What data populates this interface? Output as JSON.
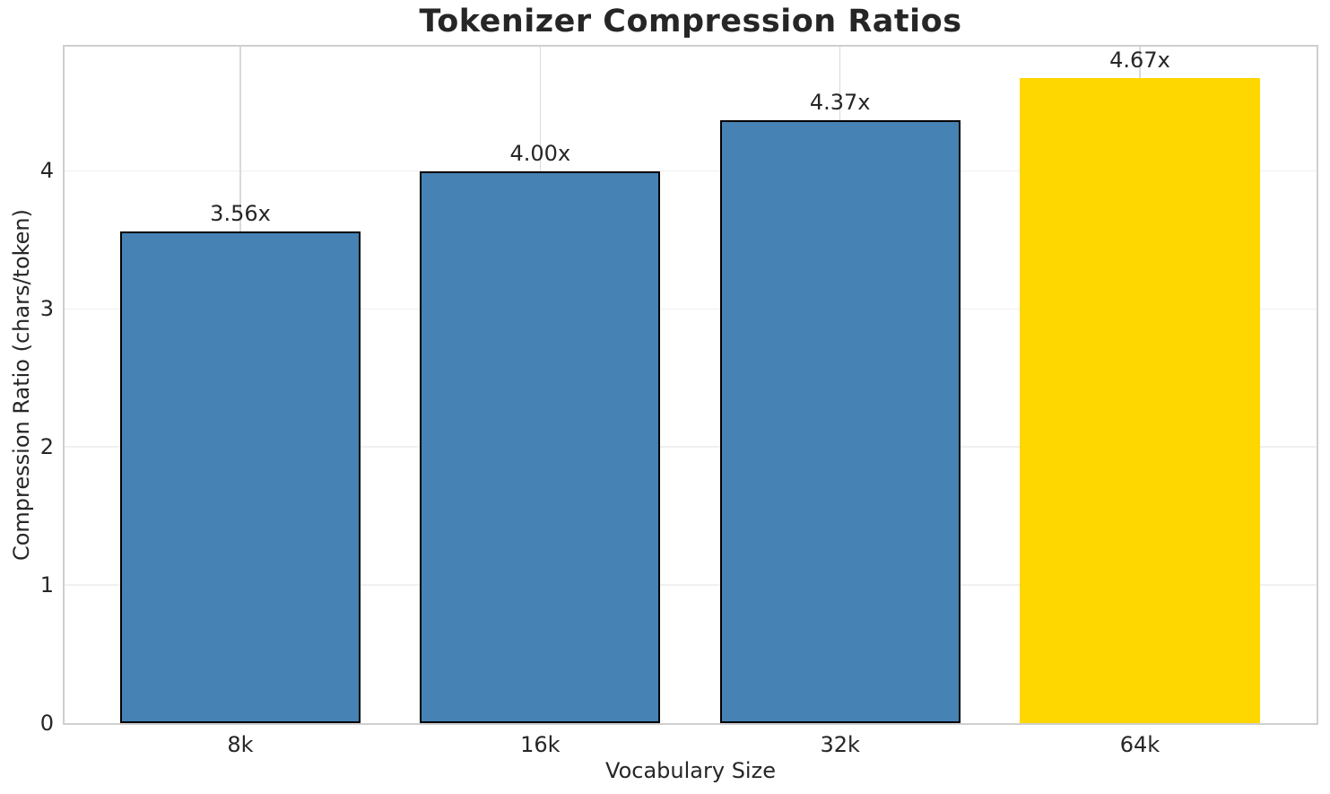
{
  "chart_data": {
    "type": "bar",
    "title": "Tokenizer Compression Ratios",
    "xlabel": "Vocabulary Size",
    "ylabel": "Compression Ratio (chars/token)",
    "categories": [
      "8k",
      "16k",
      "32k",
      "64k"
    ],
    "values": [
      3.56,
      4.0,
      4.37,
      4.67
    ],
    "bar_labels": [
      "3.56x",
      "4.00x",
      "4.37x",
      "4.67x"
    ],
    "bar_colors": [
      "#4682B4",
      "#4682B4",
      "#4682B4",
      "#FFD700"
    ],
    "bar_edge_colors": [
      "#000000",
      "#000000",
      "#000000",
      "none"
    ],
    "yticks": [
      "0",
      "1",
      "2",
      "3",
      "4"
    ],
    "ytick_values": [
      0,
      1,
      2,
      3,
      4
    ],
    "ylim": [
      0,
      4.9
    ],
    "grid": true,
    "legend": "none",
    "series_color": "#4682B4",
    "highlight_color": "#FFD700",
    "text_color": "#262626",
    "spine_color": "#cfcfcf"
  }
}
